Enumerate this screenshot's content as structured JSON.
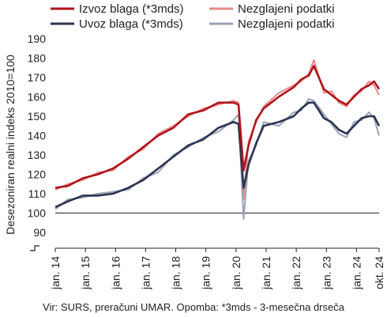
{
  "chart_data": {
    "type": "line",
    "ylabel": "Desezoniran realni indeks 2010=100",
    "ylim": [
      90,
      190
    ],
    "yticks": [
      90,
      100,
      110,
      120,
      130,
      140,
      150,
      160,
      170,
      180,
      190
    ],
    "baseline": 100,
    "xticks": [
      "jan. 14",
      "jan. 15",
      "jan. 16",
      "jan. 17",
      "jan. 18",
      "jan. 19",
      "jan. 20",
      "jan. 21",
      "jan. 22",
      "jan. 23",
      "jan. 24",
      "okt. 24"
    ],
    "source_note": "Vir: SURS, preračuni UMAR. Opomba: *3mds - 3-mesečna drseča",
    "grid": false,
    "legend_position": "top",
    "series": [
      {
        "name": "Izvoz blaga (*3mds)",
        "color": "#b0141a",
        "style": "smoothed",
        "x": [
          "2014-01",
          "2014-06",
          "2014-12",
          "2015-06",
          "2015-12",
          "2016-06",
          "2016-12",
          "2017-06",
          "2017-12",
          "2018-06",
          "2018-12",
          "2019-06",
          "2019-12",
          "2020-02",
          "2020-04",
          "2020-06",
          "2020-09",
          "2020-12",
          "2021-06",
          "2021-12",
          "2022-03",
          "2022-06",
          "2022-08",
          "2022-12",
          "2023-03",
          "2023-06",
          "2023-09",
          "2023-12",
          "2024-03",
          "2024-06",
          "2024-08",
          "2024-10"
        ],
        "values": [
          113,
          114,
          118,
          120,
          123,
          128,
          134,
          140,
          144,
          151,
          153,
          157,
          157,
          156,
          122,
          135,
          148,
          154,
          160,
          165,
          169,
          171,
          176,
          164,
          161,
          158,
          156,
          160,
          164,
          166,
          168,
          164
        ]
      },
      {
        "name": "Nezglajeni podatki",
        "color": "#e58a8a",
        "style": "raw",
        "x": [
          "2014-01",
          "2014-06",
          "2014-12",
          "2015-06",
          "2015-12",
          "2016-06",
          "2016-12",
          "2017-06",
          "2017-12",
          "2018-06",
          "2018-12",
          "2019-06",
          "2019-12",
          "2020-02",
          "2020-04",
          "2020-06",
          "2020-09",
          "2020-12",
          "2021-06",
          "2021-12",
          "2022-03",
          "2022-06",
          "2022-08",
          "2022-12",
          "2023-03",
          "2023-06",
          "2023-09",
          "2023-12",
          "2024-03",
          "2024-06",
          "2024-08",
          "2024-10"
        ],
        "values": [
          112,
          115,
          117,
          121,
          122,
          129,
          133,
          141,
          145,
          150,
          154,
          156,
          158,
          157,
          107,
          137,
          147,
          155,
          162,
          166,
          168,
          172,
          179,
          162,
          163,
          157,
          155,
          161,
          163,
          168,
          166,
          161
        ]
      },
      {
        "name": "Uvoz blaga (*3mds)",
        "color": "#2c3450",
        "style": "smoothed",
        "x": [
          "2014-01",
          "2014-06",
          "2014-12",
          "2015-06",
          "2015-12",
          "2016-06",
          "2016-12",
          "2017-06",
          "2017-12",
          "2018-06",
          "2018-12",
          "2019-06",
          "2019-12",
          "2020-02",
          "2020-04",
          "2020-06",
          "2020-09",
          "2020-12",
          "2021-06",
          "2021-12",
          "2022-03",
          "2022-06",
          "2022-08",
          "2022-12",
          "2023-03",
          "2023-06",
          "2023-09",
          "2023-12",
          "2024-03",
          "2024-06",
          "2024-08",
          "2024-10"
        ],
        "values": [
          103,
          106,
          109,
          109,
          110,
          113,
          117,
          123,
          129,
          135,
          138,
          144,
          147,
          146,
          113,
          125,
          136,
          145,
          147,
          150,
          154,
          157,
          157,
          149,
          147,
          143,
          141,
          145,
          149,
          150,
          150,
          145
        ]
      },
      {
        "name": "Nezglajeni podatki",
        "color": "#9aa2b6",
        "style": "raw",
        "x": [
          "2014-01",
          "2014-06",
          "2014-12",
          "2015-06",
          "2015-12",
          "2016-06",
          "2016-12",
          "2017-06",
          "2017-12",
          "2018-06",
          "2018-12",
          "2019-06",
          "2019-12",
          "2020-02",
          "2020-04",
          "2020-06",
          "2020-09",
          "2020-12",
          "2021-06",
          "2021-12",
          "2022-03",
          "2022-06",
          "2022-08",
          "2022-12",
          "2023-03",
          "2023-06",
          "2023-09",
          "2023-12",
          "2024-03",
          "2024-06",
          "2024-08",
          "2024-10"
        ],
        "values": [
          102,
          107,
          108,
          110,
          111,
          112,
          118,
          121,
          130,
          134,
          139,
          142,
          148,
          151,
          97,
          127,
          135,
          147,
          145,
          152,
          153,
          159,
          158,
          151,
          146,
          141,
          139,
          147,
          148,
          152,
          149,
          140
        ]
      }
    ]
  }
}
